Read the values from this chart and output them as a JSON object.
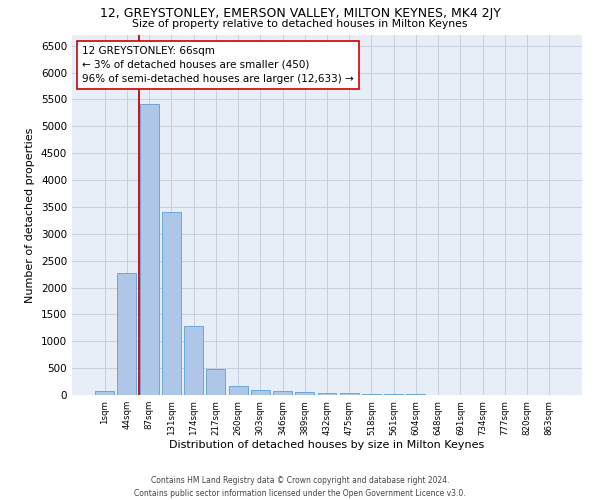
{
  "title_line1": "12, GREYSTONLEY, EMERSON VALLEY, MILTON KEYNES, MK4 2JY",
  "title_line2": "Size of property relative to detached houses in Milton Keynes",
  "xlabel": "Distribution of detached houses by size in Milton Keynes",
  "ylabel": "Number of detached properties",
  "footnote": "Contains HM Land Registry data © Crown copyright and database right 2024.\nContains public sector information licensed under the Open Government Licence v3.0.",
  "bar_labels": [
    "1sqm",
    "44sqm",
    "87sqm",
    "131sqm",
    "174sqm",
    "217sqm",
    "260sqm",
    "303sqm",
    "346sqm",
    "389sqm",
    "432sqm",
    "475sqm",
    "518sqm",
    "561sqm",
    "604sqm",
    "648sqm",
    "691sqm",
    "734sqm",
    "777sqm",
    "820sqm",
    "863sqm"
  ],
  "bar_values": [
    75,
    2270,
    5420,
    3400,
    1290,
    480,
    165,
    100,
    70,
    55,
    40,
    35,
    25,
    15,
    10,
    8,
    5,
    4,
    3,
    2,
    1
  ],
  "bar_color": "#aec6e8",
  "bar_edge_color": "#5a9fd4",
  "grid_color": "#c8d0e0",
  "background_color": "#e8eef8",
  "annotation_text": "12 GREYSTONLEY: 66sqm\n← 3% of detached houses are smaller (450)\n96% of semi-detached houses are larger (12,633) →",
  "vline_x": 1.55,
  "vline_color": "#cc0000",
  "annotation_box_color": "#ffffff",
  "annotation_box_edge": "#cc0000",
  "ylim": [
    0,
    6700
  ],
  "yticks": [
    0,
    500,
    1000,
    1500,
    2000,
    2500,
    3000,
    3500,
    4000,
    4500,
    5000,
    5500,
    6000,
    6500
  ]
}
